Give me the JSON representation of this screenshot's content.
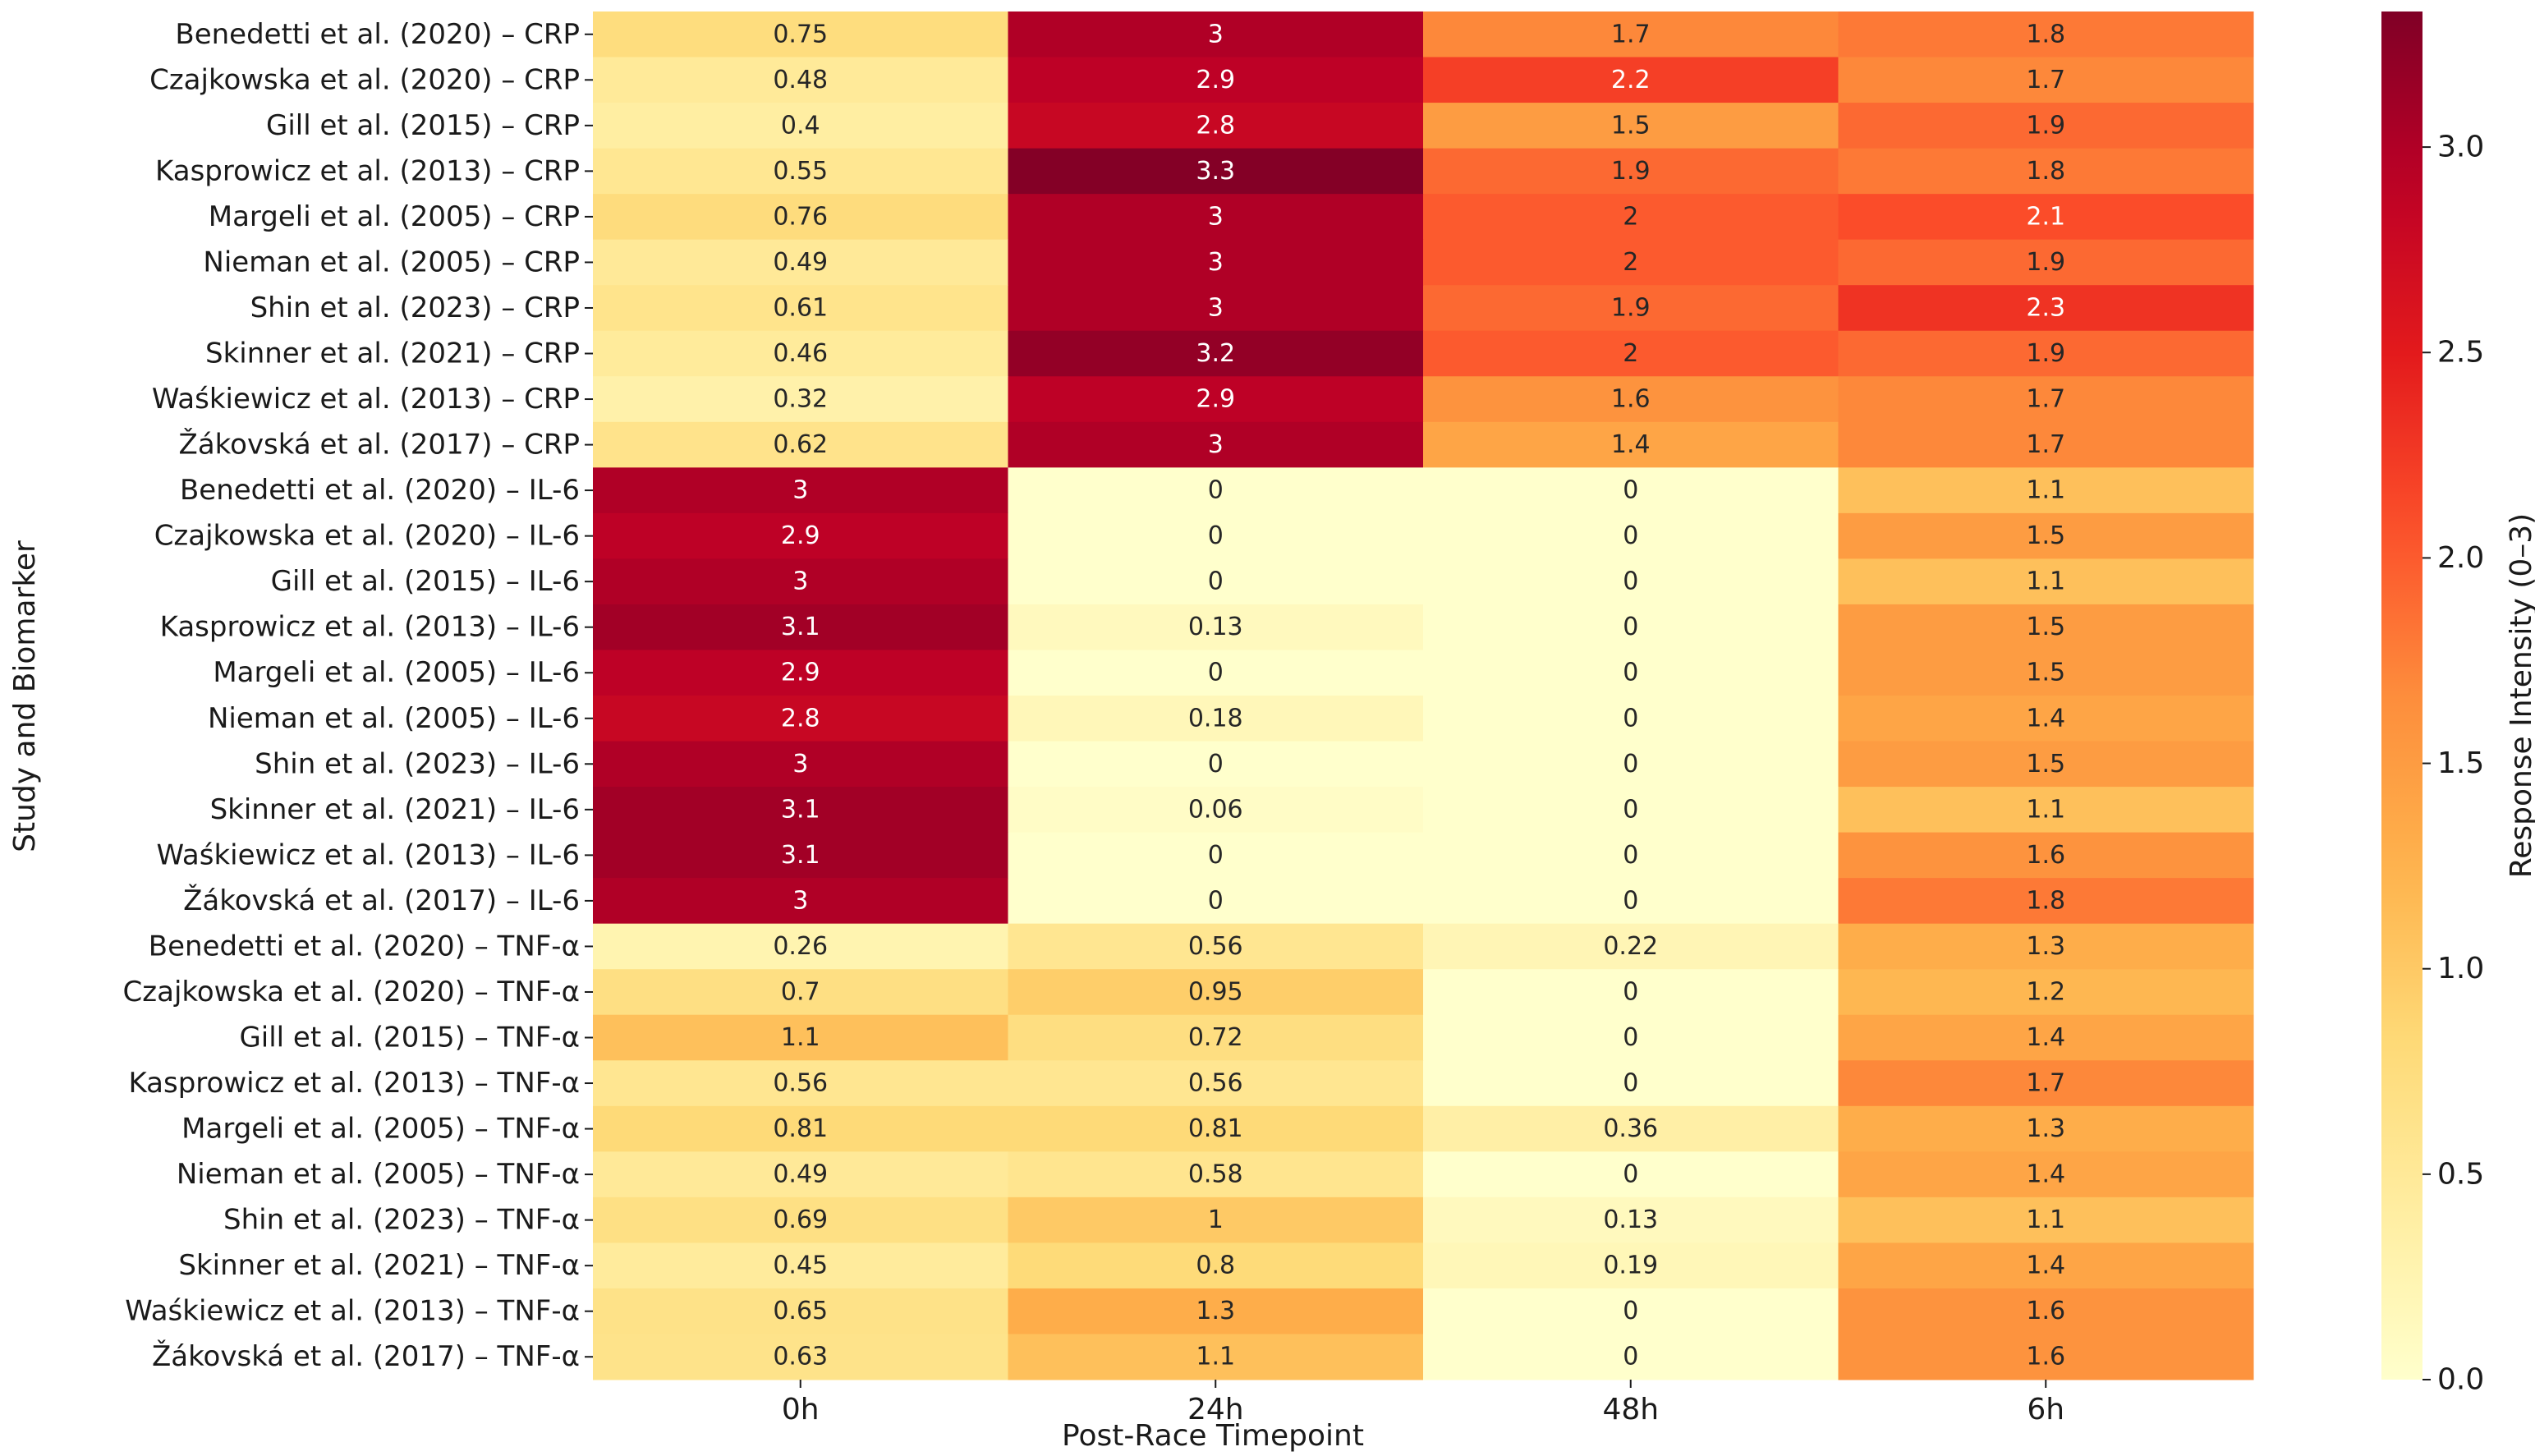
{
  "chart_data": {
    "type": "heatmap",
    "title": "",
    "xlabel": "Post-Race Timepoint",
    "ylabel": "Study and Biomarker",
    "colorbar_label": "Response Intensity (0–3)",
    "colorbar_ticks": [
      "0.0",
      "0.5",
      "1.0",
      "1.5",
      "2.0",
      "2.5",
      "3.0"
    ],
    "colorbar_tick_values": [
      0,
      0.5,
      1.0,
      1.5,
      2.0,
      2.5,
      3.0
    ],
    "vmin": 0,
    "vmax": 3.33,
    "colormap": "YlOrRd",
    "columns": [
      "0h",
      "24h",
      "48h",
      "6h"
    ],
    "rows": [
      "Benedetti et al. (2020) – CRP",
      "Czajkowska et al. (2020) – CRP",
      "Gill et al. (2015) – CRP",
      "Kasprowicz et al. (2013) – CRP",
      "Margeli et al. (2005) – CRP",
      "Nieman et al. (2005) – CRP",
      "Shin et al. (2023) – CRP",
      "Skinner et al. (2021) – CRP",
      "Waśkiewicz et al. (2013) – CRP",
      "Žákovská et al. (2017) – CRP",
      "Benedetti et al. (2020) – IL-6",
      "Czajkowska et al. (2020) – IL-6",
      "Gill et al. (2015) – IL-6",
      "Kasprowicz et al. (2013) – IL-6",
      "Margeli et al. (2005) – IL-6",
      "Nieman et al. (2005) – IL-6",
      "Shin et al. (2023) – IL-6",
      "Skinner et al. (2021) – IL-6",
      "Waśkiewicz et al. (2013) – IL-6",
      "Žákovská et al. (2017) – IL-6",
      "Benedetti et al. (2020) – TNF-α",
      "Czajkowska et al. (2020) – TNF-α",
      "Gill et al. (2015) – TNF-α",
      "Kasprowicz et al. (2013) – TNF-α",
      "Margeli et al. (2005) – TNF-α",
      "Nieman et al. (2005) – TNF-α",
      "Shin et al. (2023) – TNF-α",
      "Skinner et al. (2021) – TNF-α",
      "Waśkiewicz et al. (2013) – TNF-α",
      "Žákovská et al. (2017) – TNF-α"
    ],
    "values": [
      [
        0.75,
        3.0,
        1.7,
        1.8
      ],
      [
        0.48,
        2.9,
        2.2,
        1.7
      ],
      [
        0.4,
        2.8,
        1.5,
        1.9
      ],
      [
        0.55,
        3.3,
        1.9,
        1.8
      ],
      [
        0.76,
        3.0,
        2.0,
        2.1
      ],
      [
        0.49,
        3.0,
        2.0,
        1.9
      ],
      [
        0.61,
        3.0,
        1.9,
        2.3
      ],
      [
        0.46,
        3.2,
        2.0,
        1.9
      ],
      [
        0.32,
        2.9,
        1.6,
        1.7
      ],
      [
        0.62,
        3.0,
        1.4,
        1.7
      ],
      [
        3.0,
        0.0,
        0.0,
        1.1
      ],
      [
        2.9,
        0.0,
        0.0,
        1.5
      ],
      [
        3.0,
        0.0,
        0.0,
        1.1
      ],
      [
        3.1,
        0.13,
        0.0,
        1.5
      ],
      [
        2.9,
        0.0,
        0.0,
        1.5
      ],
      [
        2.8,
        0.18,
        0.0,
        1.4
      ],
      [
        3.0,
        0.0,
        0.0,
        1.5
      ],
      [
        3.1,
        0.06,
        0.0,
        1.1
      ],
      [
        3.1,
        0.0,
        0.0,
        1.6
      ],
      [
        3.0,
        0.0,
        0.0,
        1.8
      ],
      [
        0.26,
        0.56,
        0.22,
        1.3
      ],
      [
        0.7,
        0.95,
        0.0,
        1.2
      ],
      [
        1.1,
        0.72,
        0.0,
        1.4
      ],
      [
        0.56,
        0.56,
        0.0,
        1.7
      ],
      [
        0.81,
        0.81,
        0.36,
        1.3
      ],
      [
        0.49,
        0.58,
        0.0,
        1.4
      ],
      [
        0.69,
        1.0,
        0.13,
        1.1
      ],
      [
        0.45,
        0.8,
        0.19,
        1.4
      ],
      [
        0.65,
        1.3,
        0.0,
        1.6
      ],
      [
        0.63,
        1.1,
        0.0,
        1.6
      ]
    ],
    "cell_labels": [
      [
        "0.75",
        "3",
        "1.7",
        "1.8"
      ],
      [
        "0.48",
        "2.9",
        "2.2",
        "1.7"
      ],
      [
        "0.4",
        "2.8",
        "1.5",
        "1.9"
      ],
      [
        "0.55",
        "3.3",
        "1.9",
        "1.8"
      ],
      [
        "0.76",
        "3",
        "2",
        "2.1"
      ],
      [
        "0.49",
        "3",
        "2",
        "1.9"
      ],
      [
        "0.61",
        "3",
        "1.9",
        "2.3"
      ],
      [
        "0.46",
        "3.2",
        "2",
        "1.9"
      ],
      [
        "0.32",
        "2.9",
        "1.6",
        "1.7"
      ],
      [
        "0.62",
        "3",
        "1.4",
        "1.7"
      ],
      [
        "3",
        "0",
        "0",
        "1.1"
      ],
      [
        "2.9",
        "0",
        "0",
        "1.5"
      ],
      [
        "3",
        "0",
        "0",
        "1.1"
      ],
      [
        "3.1",
        "0.13",
        "0",
        "1.5"
      ],
      [
        "2.9",
        "0",
        "0",
        "1.5"
      ],
      [
        "2.8",
        "0.18",
        "0",
        "1.4"
      ],
      [
        "3",
        "0",
        "0",
        "1.5"
      ],
      [
        "3.1",
        "0.06",
        "0",
        "1.1"
      ],
      [
        "3.1",
        "0",
        "0",
        "1.6"
      ],
      [
        "3",
        "0",
        "0",
        "1.8"
      ],
      [
        "0.26",
        "0.56",
        "0.22",
        "1.3"
      ],
      [
        "0.7",
        "0.95",
        "0",
        "1.2"
      ],
      [
        "1.1",
        "0.72",
        "0",
        "1.4"
      ],
      [
        "0.56",
        "0.56",
        "0",
        "1.7"
      ],
      [
        "0.81",
        "0.81",
        "0.36",
        "1.3"
      ],
      [
        "0.49",
        "0.58",
        "0",
        "1.4"
      ],
      [
        "0.69",
        "1",
        "0.13",
        "1.1"
      ],
      [
        "0.45",
        "0.8",
        "0.19",
        "1.4"
      ],
      [
        "0.65",
        "1.3",
        "0",
        "1.6"
      ],
      [
        "0.63",
        "1.1",
        "0",
        "1.6"
      ]
    ]
  }
}
